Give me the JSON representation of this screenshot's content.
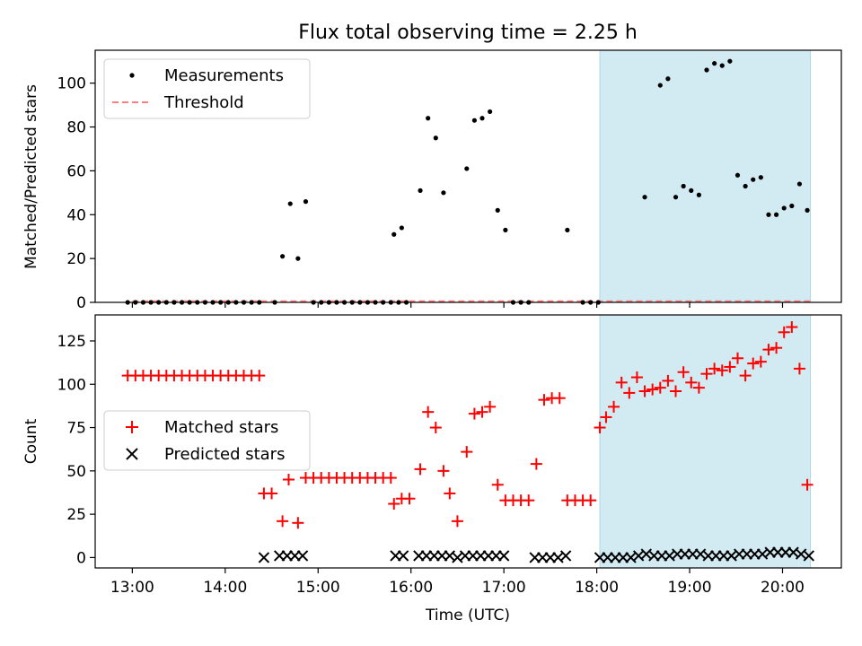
{
  "title": "Flux total observing time = 2.25 h",
  "colors": {
    "measurement": "#000000",
    "threshold": "#ff7f7f",
    "matched": "#ff0000",
    "predicted": "#000000",
    "highlight": "#add8e6"
  },
  "chart_data": [
    {
      "type": "scatter",
      "panel": "top",
      "ylabel": "Matched/Predicted stars",
      "xlabel": "",
      "ylim": [
        0,
        115
      ],
      "xlim": [
        "12:36",
        "20:38"
      ],
      "yticks": [
        0,
        20,
        40,
        60,
        80,
        100
      ],
      "grid": false,
      "legend_position": "upper left",
      "highlight_span": [
        "18:02",
        "20:18"
      ],
      "threshold": {
        "name": "Threshold",
        "y": 0.5,
        "x_range": [
          "13:00",
          "20:18"
        ],
        "style": "dashed"
      },
      "series": [
        {
          "name": "Measurements",
          "marker": "dot",
          "points": [
            [
              "12:57",
              0
            ],
            [
              "13:02",
              0
            ],
            [
              "13:07",
              0
            ],
            [
              "13:12",
              0
            ],
            [
              "13:17",
              0
            ],
            [
              "13:22",
              0
            ],
            [
              "13:27",
              0
            ],
            [
              "13:32",
              0
            ],
            [
              "13:37",
              0
            ],
            [
              "13:42",
              0
            ],
            [
              "13:47",
              0
            ],
            [
              "13:52",
              0
            ],
            [
              "13:57",
              0
            ],
            [
              "14:02",
              0
            ],
            [
              "14:07",
              0
            ],
            [
              "14:12",
              0
            ],
            [
              "14:17",
              0
            ],
            [
              "14:22",
              0
            ],
            [
              "14:32",
              0
            ],
            [
              "14:37",
              21
            ],
            [
              "14:42",
              45
            ],
            [
              "14:47",
              20
            ],
            [
              "14:52",
              46
            ],
            [
              "14:57",
              0
            ],
            [
              "15:02",
              0
            ],
            [
              "15:07",
              0
            ],
            [
              "15:12",
              0
            ],
            [
              "15:17",
              0
            ],
            [
              "15:22",
              0
            ],
            [
              "15:27",
              0
            ],
            [
              "15:32",
              0
            ],
            [
              "15:37",
              0
            ],
            [
              "15:42",
              0
            ],
            [
              "15:47",
              0
            ],
            [
              "15:52",
              0
            ],
            [
              "15:57",
              0
            ],
            [
              "15:49",
              31
            ],
            [
              "15:54",
              34
            ],
            [
              "16:06",
              51
            ],
            [
              "16:11",
              84
            ],
            [
              "16:16",
              75
            ],
            [
              "16:21",
              50
            ],
            [
              "16:36",
              61
            ],
            [
              "16:41",
              83
            ],
            [
              "16:46",
              84
            ],
            [
              "16:51",
              87
            ],
            [
              "16:56",
              42
            ],
            [
              "17:01",
              33
            ],
            [
              "17:06",
              0
            ],
            [
              "17:11",
              0
            ],
            [
              "17:16",
              0
            ],
            [
              "17:41",
              33
            ],
            [
              "17:51",
              0
            ],
            [
              "17:56",
              0
            ],
            [
              "18:01",
              0
            ],
            [
              "18:31",
              48
            ],
            [
              "18:41",
              99
            ],
            [
              "18:46",
              102
            ],
            [
              "18:51",
              48
            ],
            [
              "18:56",
              53
            ],
            [
              "19:01",
              51
            ],
            [
              "19:06",
              49
            ],
            [
              "19:11",
              106
            ],
            [
              "19:16",
              109
            ],
            [
              "19:21",
              108
            ],
            [
              "19:26",
              110
            ],
            [
              "19:31",
              58
            ],
            [
              "19:36",
              53
            ],
            [
              "19:41",
              56
            ],
            [
              "19:46",
              57
            ],
            [
              "19:51",
              40
            ],
            [
              "19:56",
              40
            ],
            [
              "20:01",
              43
            ],
            [
              "20:06",
              44
            ],
            [
              "20:11",
              54
            ],
            [
              "20:16",
              42
            ]
          ]
        }
      ]
    },
    {
      "type": "scatter",
      "panel": "bottom",
      "ylabel": "Count",
      "xlabel": "Time (UTC)",
      "ylim": [
        -6,
        140
      ],
      "xlim": [
        "12:36",
        "20:38"
      ],
      "yticks": [
        0,
        25,
        50,
        75,
        100,
        125
      ],
      "xticks": [
        "13:00",
        "14:00",
        "15:00",
        "16:00",
        "17:00",
        "18:00",
        "19:00",
        "20:00"
      ],
      "grid": false,
      "legend_position": "center left",
      "highlight_span": [
        "18:02",
        "20:18"
      ],
      "series": [
        {
          "name": "Matched stars",
          "marker": "plus",
          "points": [
            [
              "12:57",
              105
            ],
            [
              "13:02",
              105
            ],
            [
              "13:07",
              105
            ],
            [
              "13:12",
              105
            ],
            [
              "13:17",
              105
            ],
            [
              "13:22",
              105
            ],
            [
              "13:27",
              105
            ],
            [
              "13:32",
              105
            ],
            [
              "13:37",
              105
            ],
            [
              "13:42",
              105
            ],
            [
              "13:47",
              105
            ],
            [
              "13:52",
              105
            ],
            [
              "13:57",
              105
            ],
            [
              "14:02",
              105
            ],
            [
              "14:07",
              105
            ],
            [
              "14:12",
              105
            ],
            [
              "14:17",
              105
            ],
            [
              "14:22",
              105
            ],
            [
              "14:25",
              37
            ],
            [
              "14:30",
              37
            ],
            [
              "14:37",
              21
            ],
            [
              "14:41",
              45
            ],
            [
              "14:47",
              20
            ],
            [
              "14:52",
              46
            ],
            [
              "14:57",
              46
            ],
            [
              "15:02",
              46
            ],
            [
              "15:07",
              46
            ],
            [
              "15:12",
              46
            ],
            [
              "15:17",
              46
            ],
            [
              "15:22",
              46
            ],
            [
              "15:27",
              46
            ],
            [
              "15:32",
              46
            ],
            [
              "15:37",
              46
            ],
            [
              "15:42",
              46
            ],
            [
              "15:47",
              46
            ],
            [
              "15:49",
              31
            ],
            [
              "15:54",
              34
            ],
            [
              "15:59",
              34
            ],
            [
              "16:06",
              51
            ],
            [
              "16:11",
              84
            ],
            [
              "16:16",
              75
            ],
            [
              "16:21",
              50
            ],
            [
              "16:25",
              37
            ],
            [
              "16:30",
              21
            ],
            [
              "16:36",
              61
            ],
            [
              "16:41",
              83
            ],
            [
              "16:46",
              84
            ],
            [
              "16:51",
              87
            ],
            [
              "16:56",
              42
            ],
            [
              "17:01",
              33
            ],
            [
              "17:06",
              33
            ],
            [
              "17:11",
              33
            ],
            [
              "17:16",
              33
            ],
            [
              "17:21",
              54
            ],
            [
              "17:26",
              91
            ],
            [
              "17:31",
              92
            ],
            [
              "17:36",
              92
            ],
            [
              "17:41",
              33
            ],
            [
              "17:46",
              33
            ],
            [
              "17:51",
              33
            ],
            [
              "17:56",
              33
            ],
            [
              "18:02",
              75
            ],
            [
              "18:06",
              81
            ],
            [
              "18:11",
              87
            ],
            [
              "18:16",
              101
            ],
            [
              "18:21",
              95
            ],
            [
              "18:26",
              104
            ],
            [
              "18:31",
              96
            ],
            [
              "18:36",
              97
            ],
            [
              "18:41",
              98
            ],
            [
              "18:46",
              102
            ],
            [
              "18:51",
              96
            ],
            [
              "18:56",
              107
            ],
            [
              "19:01",
              101
            ],
            [
              "19:06",
              98
            ],
            [
              "19:11",
              106
            ],
            [
              "19:16",
              109
            ],
            [
              "19:21",
              108
            ],
            [
              "19:26",
              110
            ],
            [
              "19:31",
              115
            ],
            [
              "19:36",
              105
            ],
            [
              "19:41",
              112
            ],
            [
              "19:46",
              113
            ],
            [
              "19:51",
              120
            ],
            [
              "19:56",
              121
            ],
            [
              "20:01",
              130
            ],
            [
              "20:06",
              133
            ],
            [
              "20:11",
              109
            ],
            [
              "20:16",
              42
            ]
          ]
        },
        {
          "name": "Predicted stars",
          "marker": "x",
          "points": [
            [
              "14:25",
              0
            ],
            [
              "14:35",
              1
            ],
            [
              "14:40",
              1
            ],
            [
              "14:45",
              1
            ],
            [
              "14:50",
              1
            ],
            [
              "15:50",
              1
            ],
            [
              "15:55",
              1
            ],
            [
              "16:05",
              1
            ],
            [
              "16:10",
              1
            ],
            [
              "16:15",
              1
            ],
            [
              "16:20",
              1
            ],
            [
              "16:25",
              1
            ],
            [
              "16:30",
              0
            ],
            [
              "16:35",
              1
            ],
            [
              "16:40",
              1
            ],
            [
              "16:45",
              1
            ],
            [
              "16:50",
              1
            ],
            [
              "16:55",
              1
            ],
            [
              "17:00",
              1
            ],
            [
              "17:20",
              0
            ],
            [
              "17:25",
              0
            ],
            [
              "17:30",
              0
            ],
            [
              "17:35",
              0
            ],
            [
              "17:40",
              1
            ],
            [
              "18:02",
              0
            ],
            [
              "18:07",
              0
            ],
            [
              "18:12",
              0
            ],
            [
              "18:17",
              0
            ],
            [
              "18:22",
              0
            ],
            [
              "18:27",
              1
            ],
            [
              "18:32",
              2
            ],
            [
              "18:37",
              1
            ],
            [
              "18:42",
              1
            ],
            [
              "18:47",
              1
            ],
            [
              "18:52",
              2
            ],
            [
              "18:57",
              2
            ],
            [
              "19:02",
              2
            ],
            [
              "19:07",
              2
            ],
            [
              "19:12",
              1
            ],
            [
              "19:17",
              1
            ],
            [
              "19:22",
              1
            ],
            [
              "19:27",
              1
            ],
            [
              "19:32",
              2
            ],
            [
              "19:37",
              2
            ],
            [
              "19:42",
              2
            ],
            [
              "19:47",
              2
            ],
            [
              "19:52",
              3
            ],
            [
              "19:57",
              3
            ],
            [
              "20:02",
              3
            ],
            [
              "20:07",
              3
            ],
            [
              "20:12",
              2
            ],
            [
              "20:17",
              1
            ]
          ]
        }
      ]
    }
  ]
}
